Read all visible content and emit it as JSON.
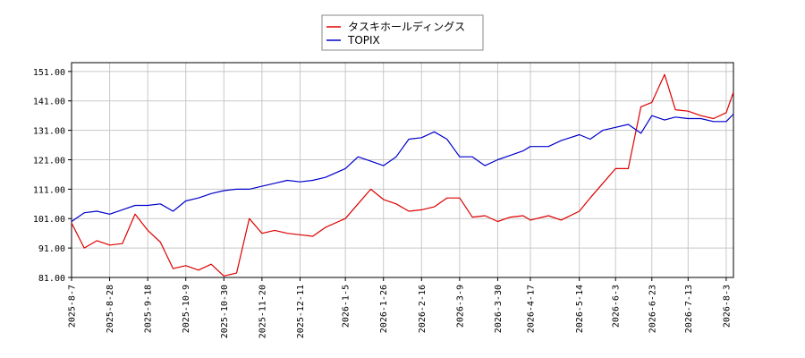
{
  "chart_data": {
    "type": "line",
    "title": "",
    "xlabel": "",
    "ylabel": "",
    "ylim": [
      81,
      154
    ],
    "grid": true,
    "legend_placement": "top-center",
    "y_ticks": [
      "81.00",
      "91.00",
      "101.00",
      "111.00",
      "121.00",
      "131.00",
      "141.00",
      "151.00"
    ],
    "x_ticks": [
      "2025-8-7",
      "2025-8-28",
      "2025-9-18",
      "2025-10-9",
      "2025-10-30",
      "2025-11-20",
      "2025-12-11",
      "2026-1-5",
      "2026-1-26",
      "2026-2-16",
      "2026-3-9",
      "2026-3-30",
      "2026-4-17",
      "2026-5-14",
      "2026-6-3",
      "2026-6-23",
      "2026-7-13",
      "2026-8-3"
    ],
    "x": [
      "2025-8-7",
      "2025-8-14",
      "2025-8-21",
      "2025-8-28",
      "2025-9-4",
      "2025-9-11",
      "2025-9-18",
      "2025-9-25",
      "2025-10-2",
      "2025-10-9",
      "2025-10-16",
      "2025-10-23",
      "2025-10-30",
      "2025-11-6",
      "2025-11-13",
      "2025-11-20",
      "2025-11-27",
      "2025-12-4",
      "2025-12-11",
      "2025-12-18",
      "2025-12-25",
      "2026-1-5",
      "2026-1-12",
      "2026-1-19",
      "2026-1-26",
      "2026-2-2",
      "2026-2-9",
      "2026-2-16",
      "2026-2-23",
      "2026-3-2",
      "2026-3-9",
      "2026-3-16",
      "2026-3-23",
      "2026-3-30",
      "2026-4-6",
      "2026-4-13",
      "2026-4-17",
      "2026-4-27",
      "2026-5-4",
      "2026-5-14",
      "2026-5-20",
      "2026-5-27",
      "2026-6-3",
      "2026-6-10",
      "2026-6-17",
      "2026-6-23",
      "2026-6-30",
      "2026-7-6",
      "2026-7-13",
      "2026-7-20",
      "2026-7-27",
      "2026-8-3",
      "2026-8-7"
    ],
    "series": [
      {
        "name": "タスキホールディングス",
        "color": "#dd0000",
        "values": [
          99.5,
          91.0,
          93.5,
          92.0,
          92.5,
          102.5,
          97.0,
          93.0,
          84.0,
          85.0,
          83.5,
          85.5,
          81.5,
          82.5,
          101.0,
          96.0,
          97.0,
          96.0,
          95.5,
          95.0,
          98.0,
          101.0,
          106.0,
          111.0,
          107.5,
          106.0,
          103.5,
          104.0,
          105.0,
          108.0,
          108.0,
          101.5,
          102.0,
          100.0,
          101.5,
          102.0,
          100.5,
          102.0,
          100.5,
          103.5,
          108.0,
          113.0,
          118.0,
          118.0,
          139.0,
          140.5,
          150.0,
          138.0,
          137.5,
          136.0,
          135.0,
          137.0,
          144.0
        ]
      },
      {
        "name": "TOPIX",
        "color": "#0000cc",
        "values": [
          100.0,
          103.0,
          103.5,
          102.5,
          104.0,
          105.5,
          105.5,
          106.0,
          103.5,
          107.0,
          108.0,
          109.5,
          110.5,
          111.0,
          111.0,
          112.0,
          113.0,
          114.0,
          113.5,
          114.0,
          115.0,
          118.0,
          122.0,
          120.5,
          119.0,
          122.0,
          128.0,
          128.5,
          130.5,
          128.0,
          122.0,
          122.0,
          119.0,
          121.0,
          122.5,
          124.0,
          125.5,
          125.5,
          127.5,
          129.5,
          128.0,
          131.0,
          132.0,
          133.0,
          130.0,
          136.0,
          134.5,
          135.5,
          135.0,
          135.0,
          134.0,
          134.0,
          136.5
        ]
      }
    ]
  }
}
